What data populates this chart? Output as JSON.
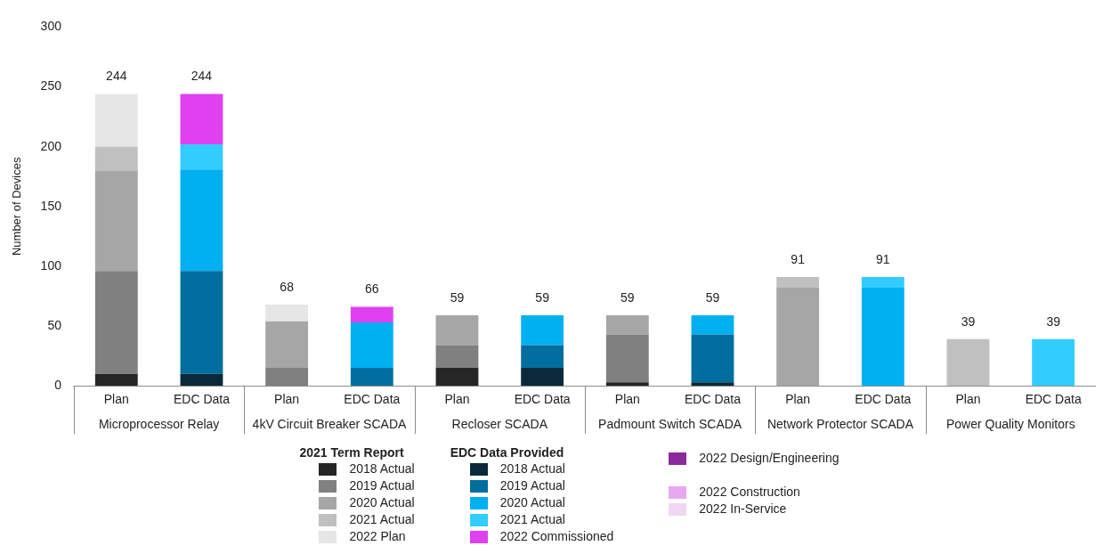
{
  "chart_data": {
    "type": "bar",
    "stacked": true,
    "ylabel": "Number of Devices",
    "categories": [
      "Plan",
      "EDC Data",
      "Plan",
      "EDC Data",
      "Plan",
      "EDC Data",
      "Plan",
      "EDC Data",
      "Plan",
      "EDC Data",
      "Plan",
      "EDC Data"
    ],
    "ylim": [
      0,
      300
    ],
    "yticks": [
      0,
      50,
      100,
      150,
      200,
      250,
      300
    ],
    "grid": false,
    "legend": "bottom",
    "series": [
      {
        "name": "2018 Actual",
        "color": "#262626",
        "values": [
          10,
          null,
          null,
          null,
          15,
          null,
          3,
          null,
          null,
          null,
          null,
          null
        ]
      },
      {
        "name": "2019 Actual",
        "color": "#808080",
        "values": [
          86,
          null,
          15,
          null,
          19,
          null,
          40,
          null,
          null,
          null,
          null,
          null
        ]
      },
      {
        "name": "2020 Actual",
        "color": "#a6a6a6",
        "values": [
          84,
          null,
          39,
          null,
          25,
          null,
          16,
          null,
          82,
          null,
          null,
          null
        ]
      },
      {
        "name": "2021 Actual",
        "color": "#c0c0c0",
        "values": [
          20,
          null,
          null,
          null,
          null,
          null,
          null,
          null,
          9,
          null,
          39,
          null
        ]
      },
      {
        "name": "2022 Plan",
        "color": "#e6e6e6",
        "values": [
          44,
          null,
          14,
          null,
          null,
          null,
          null,
          null,
          null,
          null,
          null,
          null
        ]
      },
      {
        "name": "2018 Actual",
        "color": "#0a2a3a",
        "values": [
          null,
          10,
          null,
          null,
          null,
          15,
          null,
          3,
          null,
          null,
          null,
          null
        ]
      },
      {
        "name": "2019 Actual",
        "color": "#006e9e",
        "values": [
          null,
          86,
          null,
          15,
          null,
          19,
          null,
          40,
          null,
          null,
          null,
          null
        ]
      },
      {
        "name": "2020 Actual",
        "color": "#00b0f0",
        "values": [
          null,
          85,
          null,
          38,
          null,
          25,
          null,
          16,
          null,
          82,
          null,
          null
        ]
      },
      {
        "name": "2021 Actual",
        "color": "#33ccff",
        "values": [
          null,
          21,
          null,
          null,
          null,
          null,
          null,
          null,
          null,
          9,
          null,
          39
        ]
      },
      {
        "name": "2022 Commissioned",
        "color": "#e040f0",
        "values": [
          null,
          42,
          null,
          13,
          null,
          null,
          null,
          null,
          null,
          null,
          null,
          null
        ]
      },
      {
        "name": "2022 Design/Engineering",
        "color": "#8b2a9a",
        "values": [
          null,
          null,
          null,
          null,
          null,
          null,
          null,
          null,
          null,
          null,
          null,
          null
        ]
      },
      {
        "name": "2022 Construction",
        "color": "#e6a8f0",
        "values": [
          null,
          null,
          null,
          null,
          null,
          null,
          null,
          null,
          null,
          null,
          null,
          null
        ]
      },
      {
        "name": "2022 In-Service",
        "color": "#f0d8f4",
        "values": [
          null,
          null,
          null,
          null,
          null,
          null,
          null,
          null,
          null,
          null,
          null,
          null
        ]
      }
    ],
    "totals": [
      "244",
      "244",
      "68",
      "66",
      "59",
      "59",
      "59",
      "59",
      "91",
      "91",
      "39",
      "39"
    ],
    "annotations": [
      "Microprocessor Relay",
      "4kV Circuit Breaker SCADA",
      "Recloser SCADA",
      "Padmount Switch SCADA",
      "Network Protector SCADA",
      "Power Quality Monitors",
      "2021 Term Report",
      "EDC Data Provided"
    ]
  }
}
